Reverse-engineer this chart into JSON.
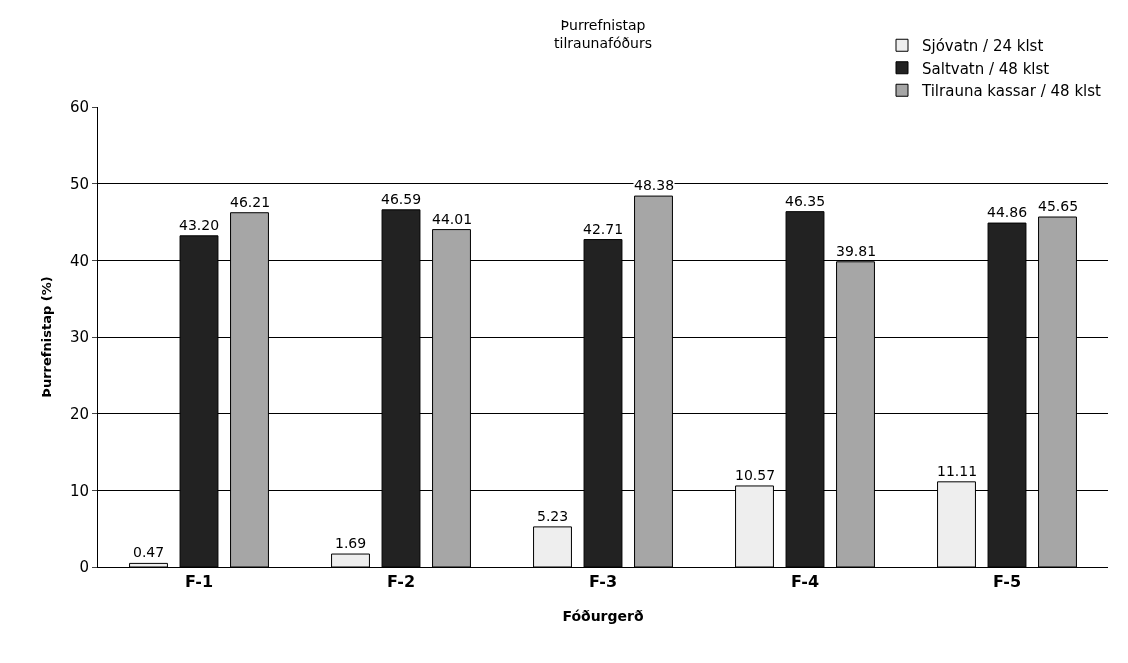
{
  "chart_data": {
    "type": "bar",
    "title": "Þurrefnistap\ntilraunafóðurs",
    "xlabel": "Fóðurgerð",
    "ylabel": "Þurrefnistap (%)",
    "categories": [
      "F-1",
      "F-2",
      "F-3",
      "F-4",
      "F-5"
    ],
    "series": [
      {
        "name": "Sjóvatn / 24 klst",
        "color": "#eeeeee",
        "values": [
          0.47,
          1.69,
          5.23,
          10.57,
          11.11
        ],
        "value_labels": [
          "0.47",
          "1.69",
          "5.23",
          "10.57",
          "11.11"
        ]
      },
      {
        "name": "Saltvatn / 48 klst",
        "color": "#222222",
        "values": [
          43.2,
          46.59,
          42.71,
          46.35,
          44.86
        ],
        "value_labels": [
          "43.20",
          "46.59",
          "42.71",
          "46.35",
          "44.86"
        ]
      },
      {
        "name": "Tilrauna kassar / 48 klst",
        "color": "#a6a6a6",
        "values": [
          46.21,
          44.01,
          48.38,
          39.81,
          45.65
        ],
        "value_labels": [
          "46.21",
          "44.01",
          "48.38",
          "39.81",
          "45.65"
        ]
      }
    ],
    "ylim": [
      0,
      60
    ],
    "yticks": [
      0,
      10,
      20,
      30,
      40,
      50,
      60
    ],
    "grid": "y",
    "legend": "top right"
  }
}
